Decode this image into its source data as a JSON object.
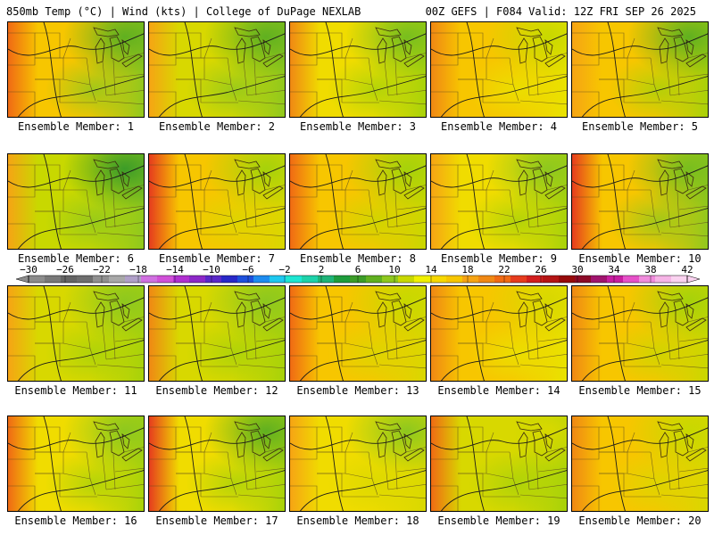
{
  "header": {
    "left": "850mb Temp (°C) | Wind (kts) | College of DuPage NEXLAB",
    "right": "00Z GEFS | F084 Valid: 12Z FRI SEP 26 2025"
  },
  "label_prefix": "Ensemble Member: ",
  "members": [
    {
      "id": 1,
      "label": "Ensemble Member: 1",
      "west": "#f06a14",
      "east": "#8ec81e",
      "mid": "#f7c600",
      "ne": "#60b020"
    },
    {
      "id": 2,
      "label": "Ensemble Member: 2",
      "west": "#f6a414",
      "east": "#8ec81e",
      "mid": "#d8d800",
      "ne": "#60b020"
    },
    {
      "id": 3,
      "label": "Ensemble Member: 3",
      "west": "#f08814",
      "east": "#a6d20a",
      "mid": "#f0dc00",
      "ne": "#78be1e"
    },
    {
      "id": 4,
      "label": "Ensemble Member: 4",
      "west": "#f08814",
      "east": "#e8e400",
      "mid": "#f7c600",
      "ne": "#c8d800"
    },
    {
      "id": 5,
      "label": "Ensemble Member: 5",
      "west": "#f6a414",
      "east": "#a6d20a",
      "mid": "#f7c600",
      "ne": "#60b020"
    },
    {
      "id": 6,
      "label": "Ensemble Member: 6",
      "west": "#f6a414",
      "east": "#8ec81e",
      "mid": "#c8d800",
      "ne": "#3c9c28"
    },
    {
      "id": 7,
      "label": "Ensemble Member: 7",
      "west": "#e63c1e",
      "east": "#d8d800",
      "mid": "#f7c600",
      "ne": "#a6d20a"
    },
    {
      "id": 8,
      "label": "Ensemble Member: 8",
      "west": "#f06a14",
      "east": "#c8d800",
      "mid": "#f7c600",
      "ne": "#a6d20a"
    },
    {
      "id": 9,
      "label": "Ensemble Member: 9",
      "west": "#f6a414",
      "east": "#a6d20a",
      "mid": "#f0dc00",
      "ne": "#8ec81e"
    },
    {
      "id": 10,
      "label": "Ensemble Member: 10",
      "west": "#e63c1e",
      "east": "#8ec81e",
      "mid": "#f7c600",
      "ne": "#78be1e"
    },
    {
      "id": 11,
      "label": "Ensemble Member: 11",
      "west": "#f6a414",
      "east": "#a6d20a",
      "mid": "#d8d800",
      "ne": "#8ec81e"
    },
    {
      "id": 12,
      "label": "Ensemble Member: 12",
      "west": "#f08814",
      "east": "#a6d20a",
      "mid": "#d8d800",
      "ne": "#8ec81e"
    },
    {
      "id": 13,
      "label": "Ensemble Member: 13",
      "west": "#f06a14",
      "east": "#d8d800",
      "mid": "#f7c600",
      "ne": "#c8d800"
    },
    {
      "id": 14,
      "label": "Ensemble Member: 14",
      "west": "#f08814",
      "east": "#e8e400",
      "mid": "#f7c600",
      "ne": "#d8d800"
    },
    {
      "id": 15,
      "label": "Ensemble Member: 15",
      "west": "#f08814",
      "east": "#c8d800",
      "mid": "#f7c600",
      "ne": "#a6d20a"
    },
    {
      "id": 16,
      "label": "Ensemble Member: 16",
      "west": "#f06a14",
      "east": "#a6d20a",
      "mid": "#f0dc00",
      "ne": "#8ec81e"
    },
    {
      "id": 17,
      "label": "Ensemble Member: 17",
      "west": "#e63c1e",
      "east": "#a6d20a",
      "mid": "#f0dc00",
      "ne": "#60b020"
    },
    {
      "id": 18,
      "label": "Ensemble Member: 18",
      "west": "#f6a414",
      "east": "#d8d800",
      "mid": "#f0dc00",
      "ne": "#8ec81e"
    },
    {
      "id": 19,
      "label": "Ensemble Member: 19",
      "west": "#f06a14",
      "east": "#a6d20a",
      "mid": "#d8d800",
      "ne": "#d8d800"
    },
    {
      "id": 20,
      "label": "Ensemble Member: 20",
      "west": "#f08814",
      "east": "#d8d800",
      "mid": "#f7c600",
      "ne": "#c8d800"
    }
  ],
  "colorbar": {
    "ticks": [
      "−30",
      "−26",
      "−22",
      "−18",
      "−14",
      "−10",
      "−6",
      "−2",
      "2",
      "6",
      "10",
      "14",
      "18",
      "22",
      "26",
      "30",
      "34",
      "38",
      "42"
    ],
    "colors": [
      "#8c8c8c",
      "#787878",
      "#646464",
      "#6e6e6e",
      "#909090",
      "#a8a8a8",
      "#b0a0c8",
      "#d070e0",
      "#d050d8",
      "#b030d0",
      "#8c28c8",
      "#5a28c8",
      "#2828c8",
      "#1e50dc",
      "#1e8cf0",
      "#1ec8f0",
      "#1ee6d2",
      "#1ed2aa",
      "#1eb478",
      "#1e9c3c",
      "#3c9c28",
      "#60b020",
      "#8ec81e",
      "#c8d800",
      "#f0f000",
      "#f7d800",
      "#f7c600",
      "#f6a414",
      "#f08814",
      "#f06a14",
      "#e63c1e",
      "#d21e1e",
      "#b41414",
      "#960a0a",
      "#8c0a28",
      "#a0146e",
      "#c81ea0",
      "#e650c8",
      "#f08cdc",
      "#f6b4e6",
      "#fad2f0"
    ]
  }
}
